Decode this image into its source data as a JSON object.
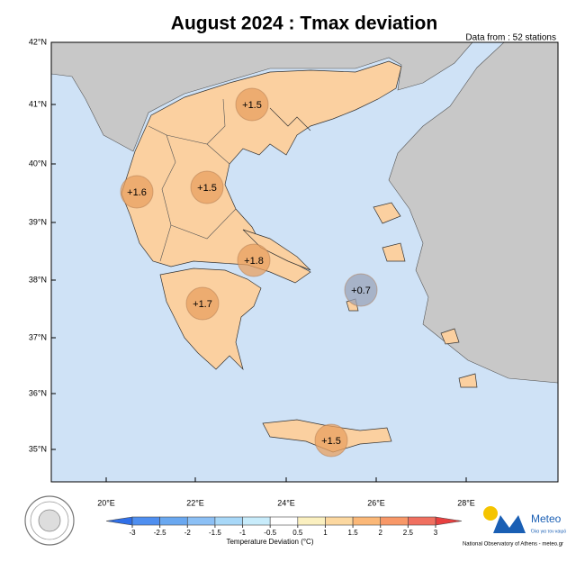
{
  "title": "August 2024 : Tmax deviation",
  "subtitle": "Data from : 52 stations",
  "map": {
    "lat_labels": [
      "42°N",
      "41°N",
      "40°N",
      "39°N",
      "38°N",
      "37°N",
      "36°N",
      "35°N"
    ],
    "lon_labels": [
      "20°E",
      "22°E",
      "24°E",
      "26°E",
      "28°E"
    ],
    "markers": [
      {
        "label": "+1.5"
      },
      {
        "label": "+1.6"
      },
      {
        "label": "+1.5"
      },
      {
        "label": "+1.8"
      },
      {
        "label": "+0.7"
      },
      {
        "label": "+1.7"
      },
      {
        "label": "+1.5"
      }
    ]
  },
  "colorbar": {
    "ticks": [
      -3,
      -2.5,
      -2,
      -1.5,
      -1,
      -0.5,
      0.5,
      1,
      1.5,
      2,
      2.5,
      3
    ],
    "label": "Temperature Deviation (°C)"
  },
  "logo": {
    "name": "Meteo",
    "tagline": "Όλα για τον καιρό",
    "credit": "National Observatory of Athens - meteo.gr"
  }
}
